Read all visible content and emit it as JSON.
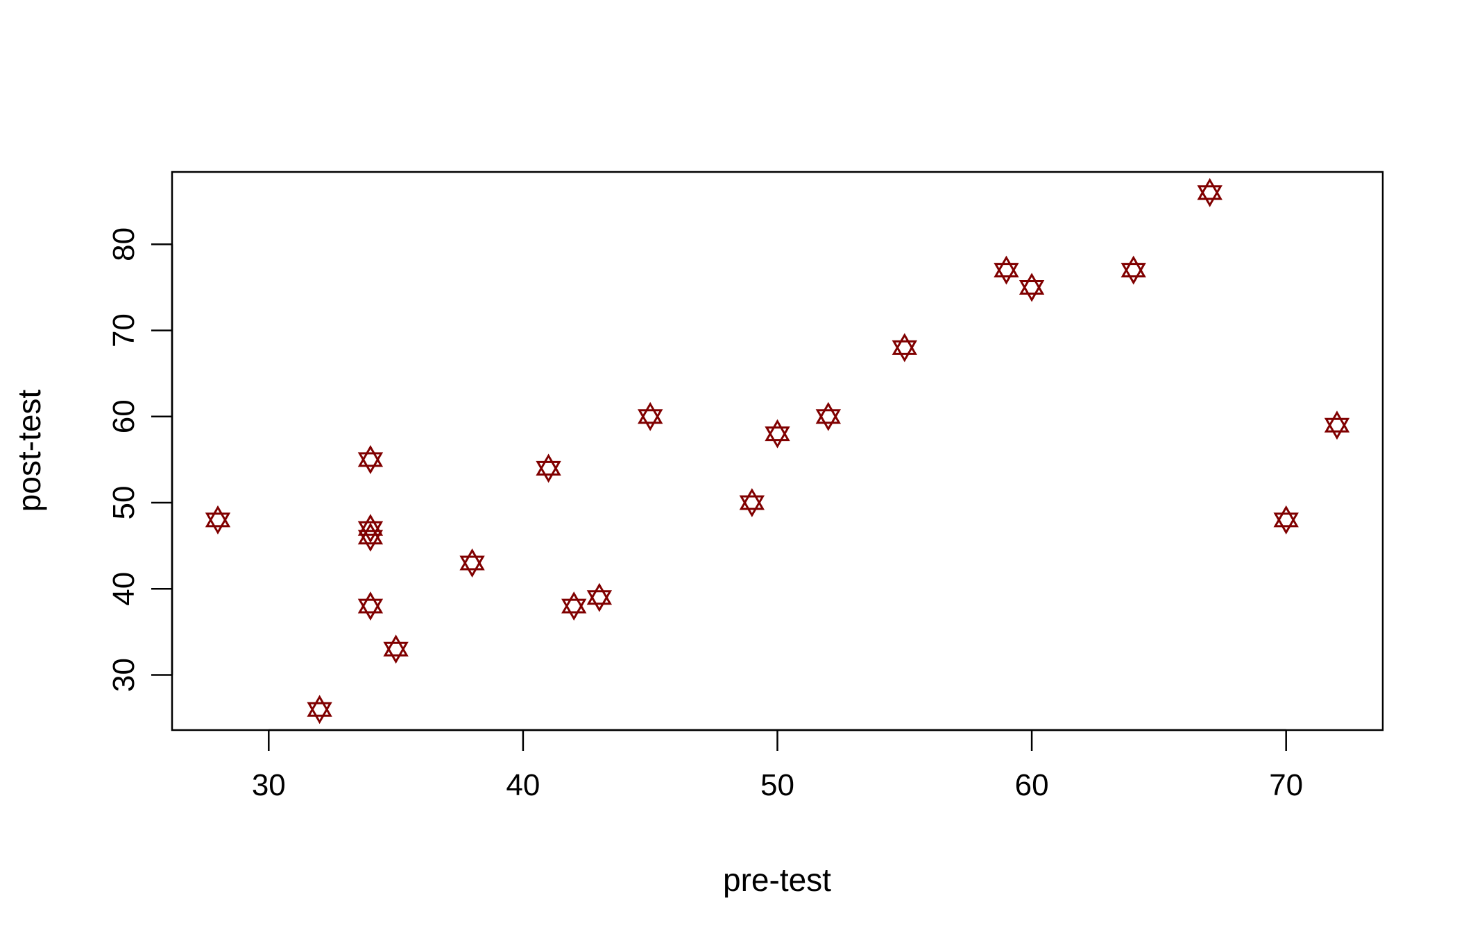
{
  "chart_data": {
    "type": "scatter",
    "title": "",
    "xlabel": "pre-test",
    "ylabel": "post-test",
    "xlim": [
      26.2,
      73.8
    ],
    "ylim": [
      23.6,
      88.4
    ],
    "x_ticks": [
      30,
      40,
      50,
      60,
      70
    ],
    "y_ticks": [
      30,
      40,
      50,
      60,
      70,
      80
    ],
    "x_tick_labels": [
      "30",
      "40",
      "50",
      "60",
      "70"
    ],
    "y_tick_labels": [
      "30",
      "40",
      "50",
      "60",
      "70",
      "80"
    ],
    "grid": false,
    "legend": "none",
    "marker": "star-of-david",
    "marker_color": "#800000",
    "series": [
      {
        "points": [
          {
            "x": 28,
            "y": 48
          },
          {
            "x": 32,
            "y": 26
          },
          {
            "x": 34,
            "y": 55
          },
          {
            "x": 34,
            "y": 47
          },
          {
            "x": 34,
            "y": 46
          },
          {
            "x": 34,
            "y": 38
          },
          {
            "x": 35,
            "y": 33
          },
          {
            "x": 38,
            "y": 43
          },
          {
            "x": 41,
            "y": 54
          },
          {
            "x": 42,
            "y": 38
          },
          {
            "x": 43,
            "y": 39
          },
          {
            "x": 45,
            "y": 60
          },
          {
            "x": 49,
            "y": 50
          },
          {
            "x": 50,
            "y": 58
          },
          {
            "x": 52,
            "y": 60
          },
          {
            "x": 55,
            "y": 68
          },
          {
            "x": 59,
            "y": 77
          },
          {
            "x": 60,
            "y": 75
          },
          {
            "x": 64,
            "y": 77
          },
          {
            "x": 67,
            "y": 86
          },
          {
            "x": 70,
            "y": 48
          },
          {
            "x": 72,
            "y": 59
          }
        ]
      }
    ]
  }
}
